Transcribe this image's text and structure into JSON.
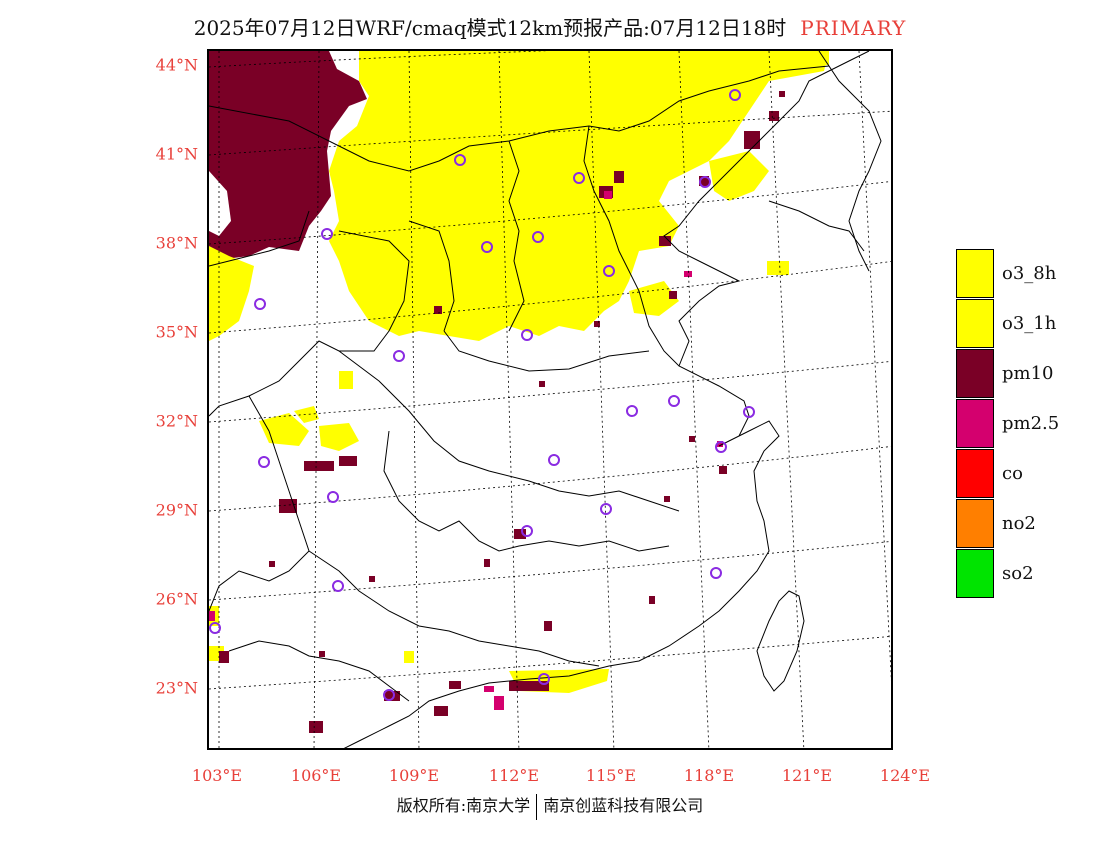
{
  "title": {
    "text": "2025年07月12日WRF/cmaq模式12km预报产品:07月12日18时",
    "tag": "PRIMARY"
  },
  "colors": {
    "o3_8h": "#ffff00",
    "o3_1h": "#ffff00",
    "pm10": "#7a0026",
    "pm25": "#d4006e",
    "co": "#ff0000",
    "no2": "#ff7f00",
    "so2": "#00e400",
    "station_marker": "#8a2be2",
    "axis_label": "#e8403a"
  },
  "latitude_labels": [
    "44°N",
    "41°N",
    "38°N",
    "35°N",
    "32°N",
    "29°N",
    "26°N",
    "23°N"
  ],
  "longitude_labels": [
    "103°E",
    "106°E",
    "109°E",
    "112°E",
    "115°E",
    "118°E",
    "121°E",
    "124°E"
  ],
  "legend": [
    {
      "label": "o3_8h",
      "color": "#ffff00"
    },
    {
      "label": "o3_1h",
      "color": "#ffff00"
    },
    {
      "label": "pm10",
      "color": "#7a0026"
    },
    {
      "label": "pm2.5",
      "color": "#d4006e"
    },
    {
      "label": "co",
      "color": "#ff0000"
    },
    {
      "label": "no2",
      "color": "#ff7f00"
    },
    {
      "label": "so2",
      "color": "#00e400"
    }
  ],
  "footer": {
    "left": "版权所有:南京大学",
    "right": "南京创蓝科技有限公司"
  }
}
